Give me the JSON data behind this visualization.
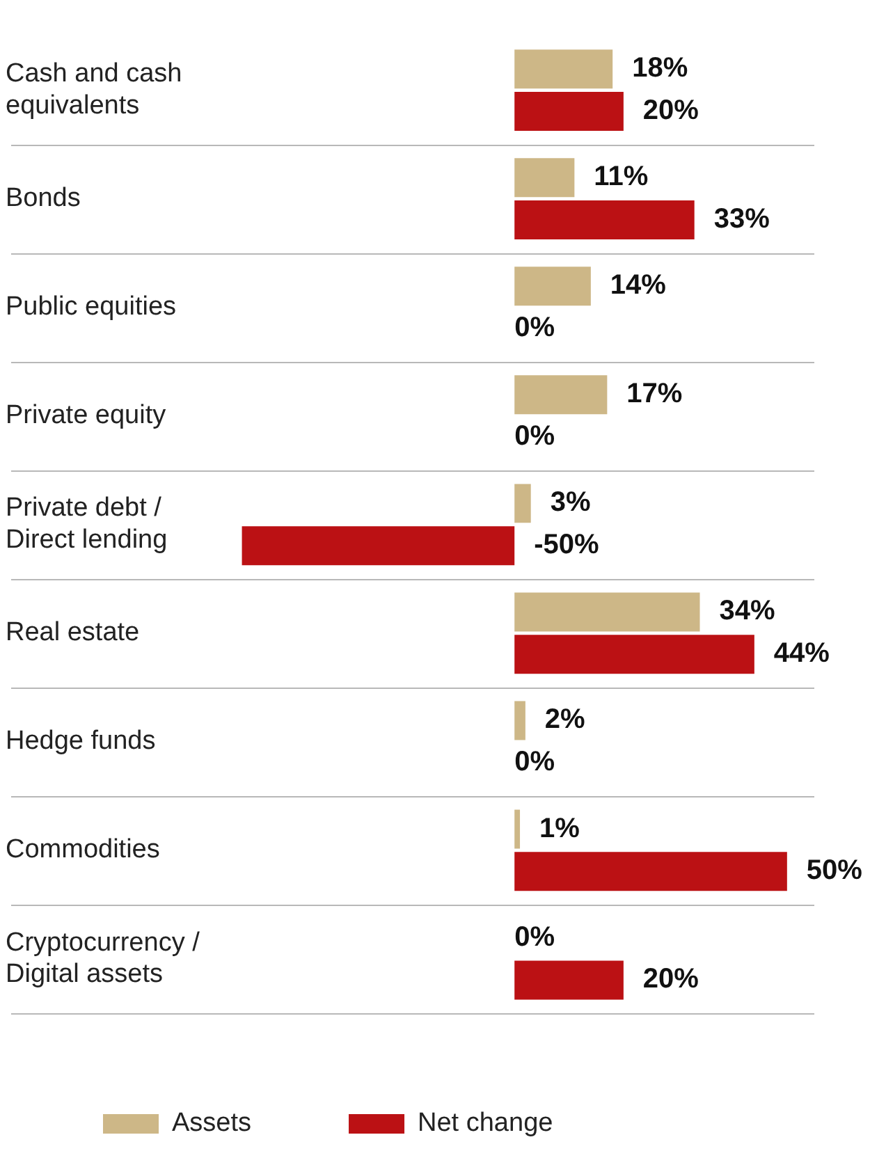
{
  "chart_data": {
    "type": "bar",
    "orientation": "horizontal",
    "categories": [
      "Cash and cash equivalents",
      "Bonds",
      "Public equities",
      "Private equity",
      "Private debt / Direct lending",
      "Real estate",
      "Hedge funds",
      "Commodities",
      "Cryptocurrency / Digital assets"
    ],
    "series": [
      {
        "name": "Assets",
        "color": "#cdb787",
        "values": [
          18,
          11,
          14,
          17,
          3,
          34,
          2,
          1,
          0
        ],
        "value_labels": [
          "18%",
          "11%",
          "14%",
          "17%",
          "3%",
          "34%",
          "2%",
          "1%",
          "0%"
        ]
      },
      {
        "name": "Net change",
        "color": "#bb1114",
        "values": [
          20,
          33,
          0,
          0,
          -50,
          44,
          0,
          50,
          20
        ],
        "value_labels": [
          "20%",
          "33%",
          "0%",
          "0%",
          "-50%",
          "44%",
          "0%",
          "50%",
          "20%"
        ]
      }
    ],
    "tick_labels": "y",
    "grid": "y",
    "legend": "bottom"
  }
}
